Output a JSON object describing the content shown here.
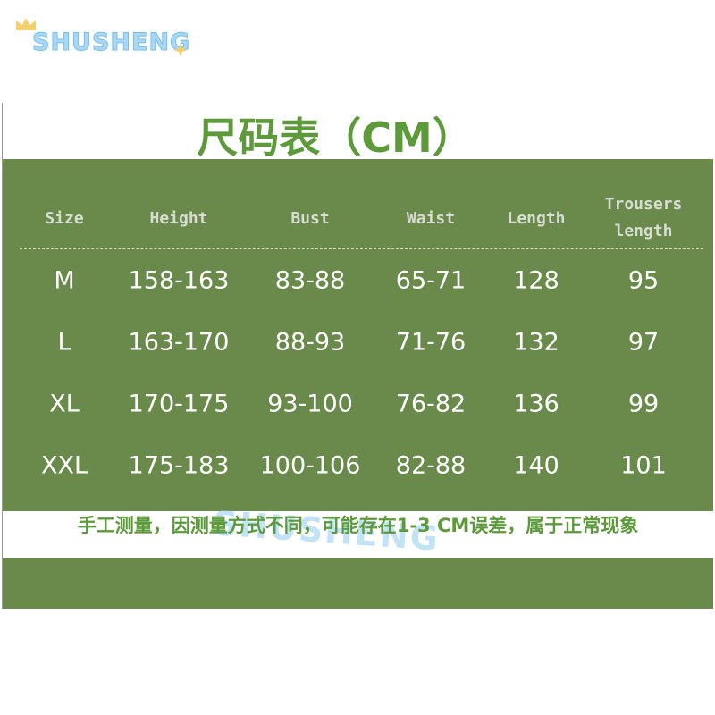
{
  "brand": {
    "logo_text": "SHUSHENG"
  },
  "title": "尺码表（CM）",
  "colors": {
    "panel": "#6a8a4c",
    "title": "#5c9a3a",
    "header_text": "#d8dcd2",
    "cell_text": "#ffffff"
  },
  "table": {
    "headers": [
      "Size",
      "Height",
      "Bust",
      "Waist",
      "Length",
      "Trousers length"
    ],
    "rows": [
      [
        "M",
        "158-163",
        "83-88",
        "65-71",
        "128",
        "95"
      ],
      [
        "L",
        "163-170",
        "88-93",
        "71-76",
        "132",
        "97"
      ],
      [
        "XL",
        "170-175",
        "93-100",
        "76-82",
        "136",
        "99"
      ],
      [
        "XXL",
        "175-183",
        "100-106",
        "82-88",
        "140",
        "101"
      ]
    ]
  },
  "note": "手工测量，因测量方式不同，可能存在1-3 CM误差，属于正常现象"
}
